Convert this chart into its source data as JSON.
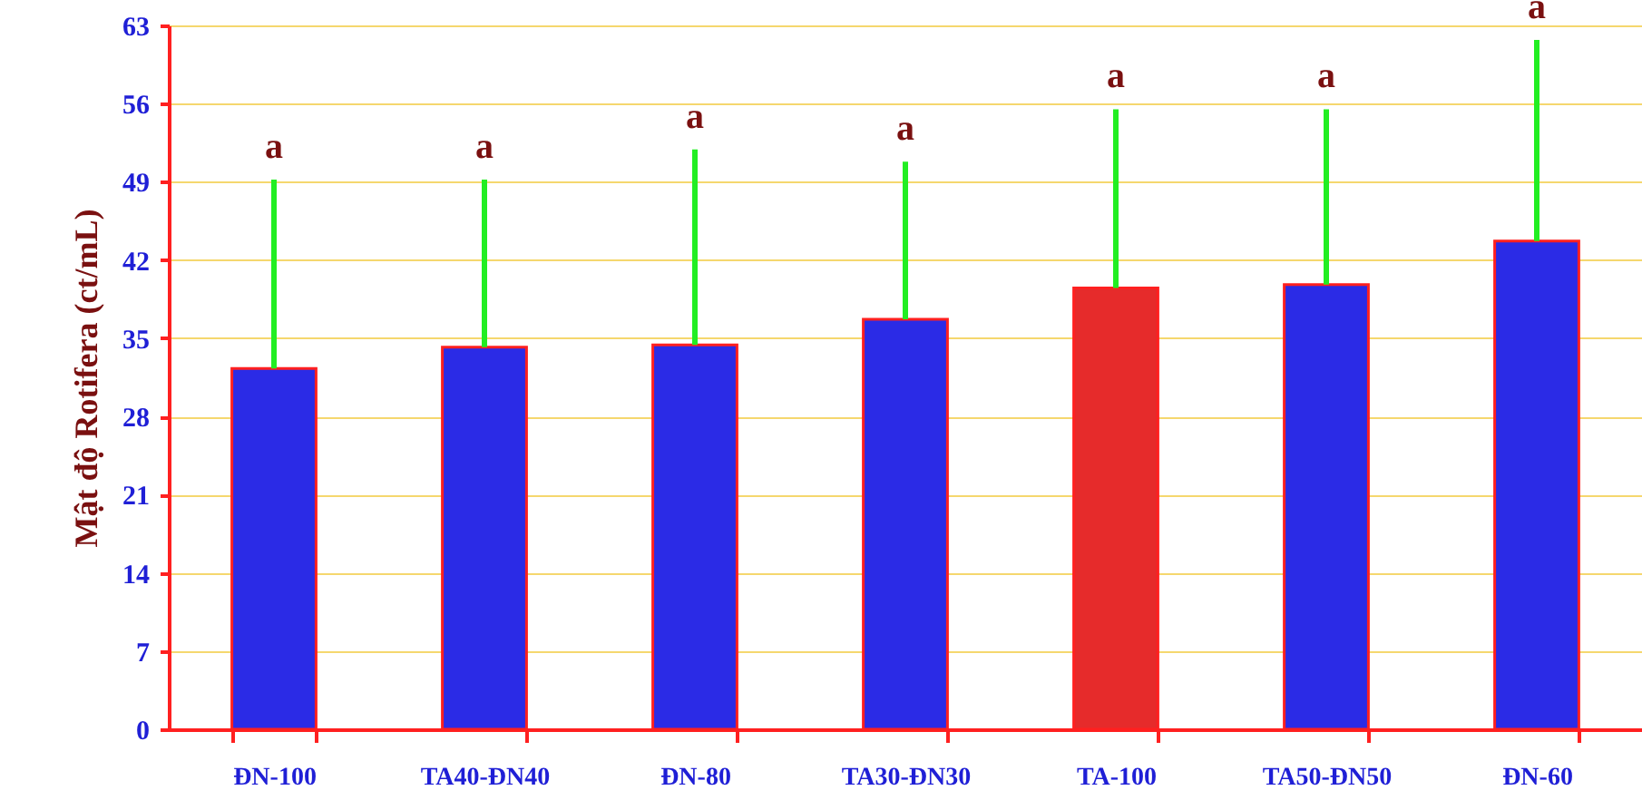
{
  "chart_data": {
    "type": "bar",
    "ylabel": "Mật độ Rotifera (ct/mL)",
    "categories": [
      "ĐN-100",
      "TA40-ĐN40",
      "ĐN-80",
      "TA30-ĐN30",
      "TA-100",
      "TA50-ĐN50",
      "ĐN-60"
    ],
    "values": [
      32.3,
      34.2,
      34.4,
      36.7,
      39.5,
      39.8,
      43.7
    ],
    "errors": [
      [
        32.3,
        49.2
      ],
      [
        34.2,
        49.2
      ],
      [
        34.4,
        51.9
      ],
      [
        36.7,
        50.8
      ],
      [
        39.5,
        55.5
      ],
      [
        39.8,
        55.5
      ],
      [
        43.7,
        61.7
      ]
    ],
    "colors": [
      "#2b2be6",
      "#2b2be6",
      "#2b2be6",
      "#2b2be6",
      "#e62b2b",
      "#2b2be6",
      "#2b2be6"
    ],
    "ylim": [
      0,
      63
    ],
    "yticks": [
      0,
      7,
      14,
      21,
      28,
      35,
      42,
      49,
      56,
      63
    ],
    "grid": "y",
    "annotations": [
      {
        "text": "a",
        "x": "ĐN-100",
        "y": 49.2
      },
      {
        "text": "a",
        "x": "TA40-ĐN40",
        "y": 49.2
      },
      {
        "text": "a",
        "x": "ĐN-80",
        "y": 51.9
      },
      {
        "text": "a",
        "x": "TA30-ĐN30",
        "y": 50.8
      },
      {
        "text": "a",
        "x": "TA-100",
        "y": 55.5
      },
      {
        "text": "a",
        "x": "TA50-ĐN50",
        "y": 55.5
      },
      {
        "text": "a",
        "x": "ĐN-60",
        "y": 61.7
      }
    ]
  }
}
